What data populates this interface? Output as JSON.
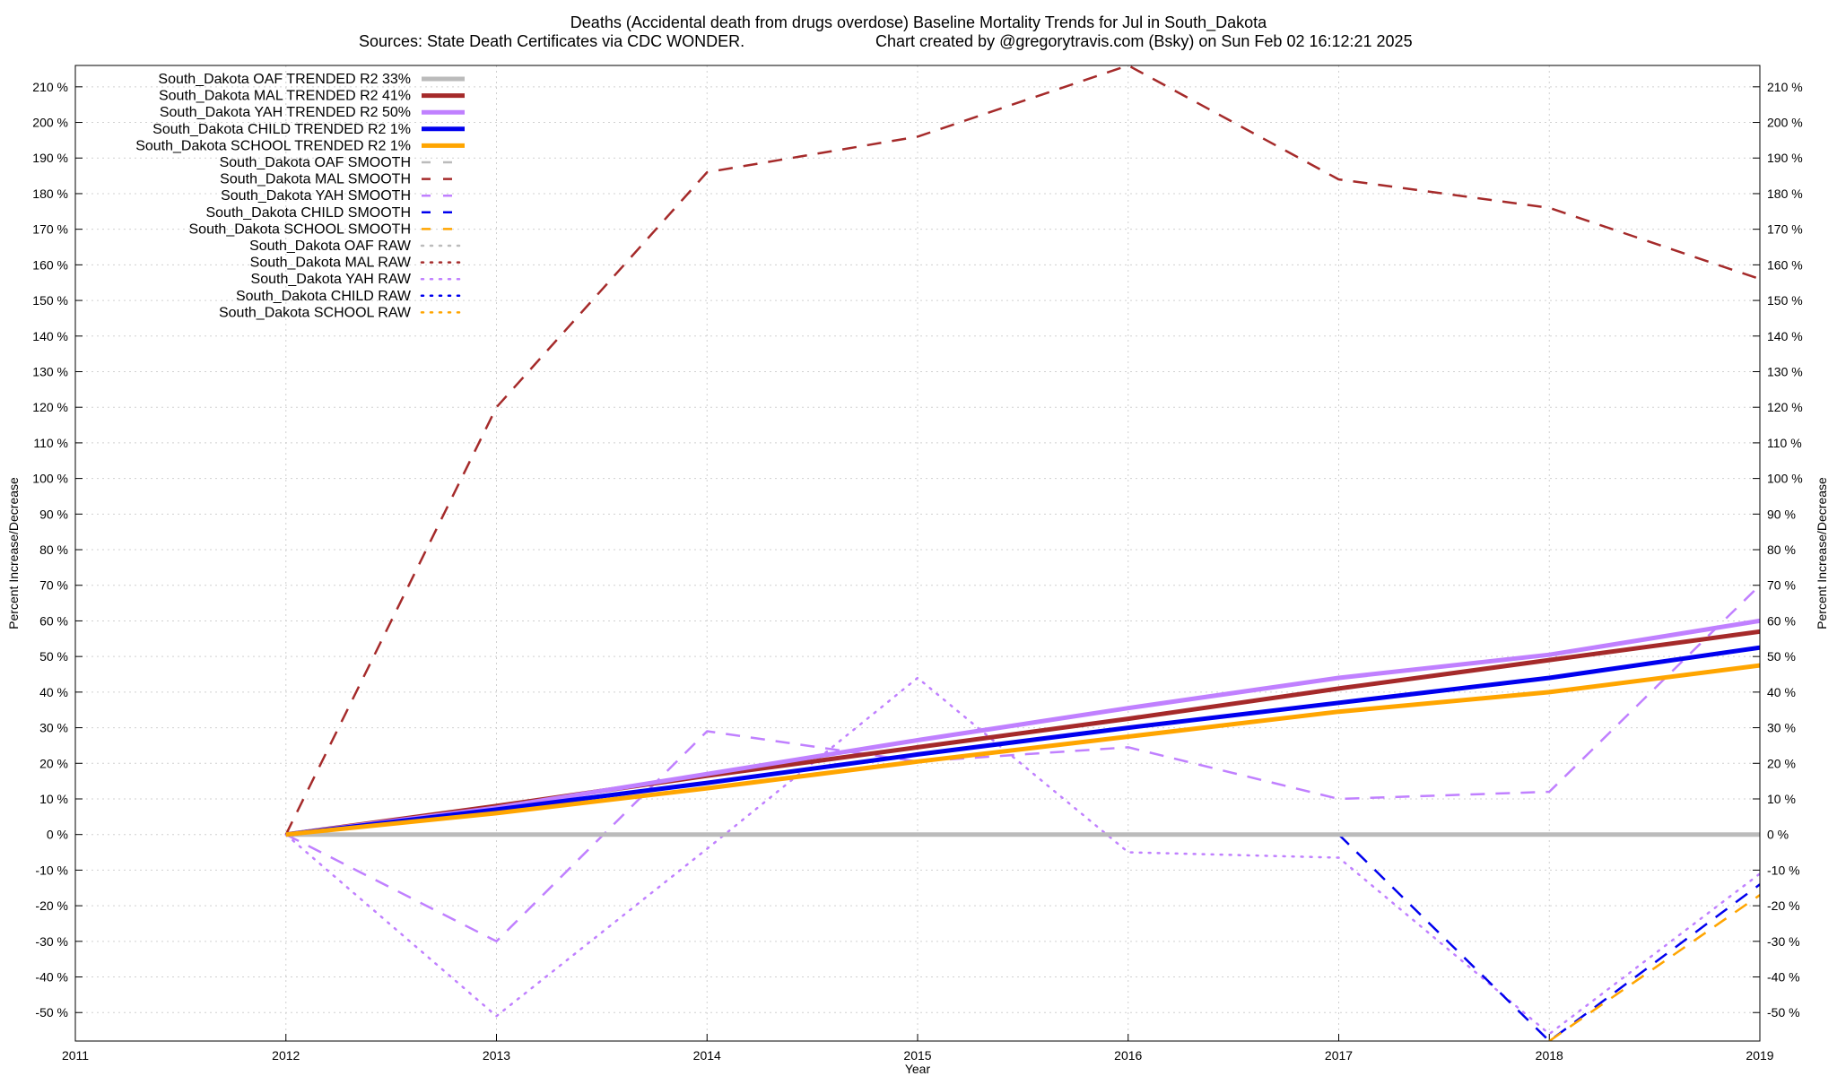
{
  "chart_data": {
    "type": "line",
    "title": "Deaths (Accidental death from drugs overdose)  Baseline Mortality Trends for Jul in South_Dakota",
    "subtitle_left": "Sources: State Death Certificates via CDC WONDER.",
    "subtitle_right": "Chart created by @gregorytravis.com (Bsky) on Sun Feb 02 16:12:21 2025",
    "xlabel": "Year",
    "ylabel": "Percent Increase/Decrease",
    "xlim": [
      2011,
      2019
    ],
    "ylim": [
      -58,
      216
    ],
    "x_ticks": [
      2011,
      2012,
      2013,
      2014,
      2015,
      2016,
      2017,
      2018,
      2019
    ],
    "y_ticks": [
      -50,
      -40,
      -30,
      -20,
      -10,
      0,
      10,
      20,
      30,
      40,
      50,
      60,
      70,
      80,
      90,
      100,
      110,
      120,
      130,
      140,
      150,
      160,
      170,
      180,
      190,
      200,
      210
    ],
    "y_tick_suffix": " %",
    "grid": true,
    "legend_position": "top-left",
    "series": [
      {
        "name": "South_Dakota OAF TRENDED R2  33%",
        "style": "solid",
        "color": "#bbbbbb",
        "x": [
          2012,
          2013,
          2014,
          2015,
          2016,
          2017,
          2018,
          2019
        ],
        "y": [
          0,
          0,
          0,
          0,
          0,
          0,
          0,
          0
        ]
      },
      {
        "name": "South_Dakota MAL TRENDED R2  41%",
        "style": "solid",
        "color": "#a52a2a",
        "x": [
          2012,
          2013,
          2014,
          2015,
          2016,
          2017,
          2018,
          2019
        ],
        "y": [
          0,
          8,
          16.5,
          24.5,
          32.5,
          41,
          49,
          57
        ]
      },
      {
        "name": "South_Dakota YAH TRENDED R2  50%",
        "style": "solid",
        "color": "#c080ff",
        "x": [
          2012,
          2013,
          2014,
          2015,
          2016,
          2017,
          2018,
          2019
        ],
        "y": [
          0,
          7.5,
          17,
          26.5,
          35.5,
          44,
          50.5,
          60
        ]
      },
      {
        "name": "South_Dakota CHILD TRENDED R2   1%",
        "style": "solid",
        "color": "#0000ee",
        "x": [
          2012,
          2013,
          2014,
          2015,
          2016,
          2017,
          2018,
          2019
        ],
        "y": [
          0,
          7,
          14.5,
          22.5,
          30,
          37,
          44,
          52.5
        ]
      },
      {
        "name": "South_Dakota SCHOOL TRENDED R2   1%",
        "style": "solid",
        "color": "#ffa500",
        "x": [
          2012,
          2013,
          2014,
          2015,
          2016,
          2017,
          2018,
          2019
        ],
        "y": [
          0,
          6,
          13,
          20.5,
          27.5,
          34.5,
          40,
          47.5
        ]
      },
      {
        "name": "South_Dakota OAF SMOOTH",
        "style": "dashed",
        "color": "#bbbbbb",
        "x": [
          2012,
          2013,
          2014,
          2015,
          2016,
          2017,
          2018,
          2019
        ],
        "y": [
          0,
          0,
          0,
          0,
          0,
          0,
          0,
          0
        ]
      },
      {
        "name": "South_Dakota MAL SMOOTH",
        "style": "dashed",
        "color": "#a52a2a",
        "x": [
          2012,
          2013,
          2014,
          2015,
          2016,
          2017,
          2018,
          2019
        ],
        "y": [
          0,
          120,
          186,
          196,
          216,
          184,
          176,
          156
        ]
      },
      {
        "name": "South_Dakota YAH SMOOTH",
        "style": "dashed",
        "color": "#c080ff",
        "x": [
          2012,
          2013,
          2014,
          2015,
          2016,
          2017,
          2018,
          2019
        ],
        "y": [
          0,
          -30,
          29,
          20.5,
          24.5,
          10,
          12,
          70
        ]
      },
      {
        "name": "South_Dakota CHILD SMOOTH",
        "style": "dashed",
        "color": "#0000ee",
        "x": [
          2017,
          2018,
          2019
        ],
        "y": [
          0,
          -58,
          -14
        ]
      },
      {
        "name": "South_Dakota SCHOOL SMOOTH",
        "style": "dashed",
        "color": "#ffa500",
        "x": [
          2018,
          2019
        ],
        "y": [
          -58,
          -17
        ]
      },
      {
        "name": "South_Dakota OAF RAW",
        "style": "dotted",
        "color": "#bbbbbb",
        "x": [
          2012,
          2013,
          2014,
          2015,
          2016,
          2017,
          2018,
          2019
        ],
        "y": [
          0,
          0,
          0,
          0,
          0,
          0,
          0,
          0
        ]
      },
      {
        "name": "South_Dakota MAL RAW",
        "style": "dotted",
        "color": "#a52a2a",
        "x": [],
        "y": []
      },
      {
        "name": "South_Dakota YAH RAW",
        "style": "dotted",
        "color": "#c080ff",
        "x": [
          2012,
          2013,
          2014,
          2015,
          2016,
          2017,
          2018,
          2019
        ],
        "y": [
          0,
          -51,
          -4,
          44,
          -5,
          -6.5,
          -56,
          -11
        ]
      },
      {
        "name": "South_Dakota CHILD RAW",
        "style": "dotted",
        "color": "#0000ee",
        "x": [],
        "y": []
      },
      {
        "name": "South_Dakota SCHOOL RAW",
        "style": "dotted",
        "color": "#ffa500",
        "x": [],
        "y": []
      }
    ]
  }
}
